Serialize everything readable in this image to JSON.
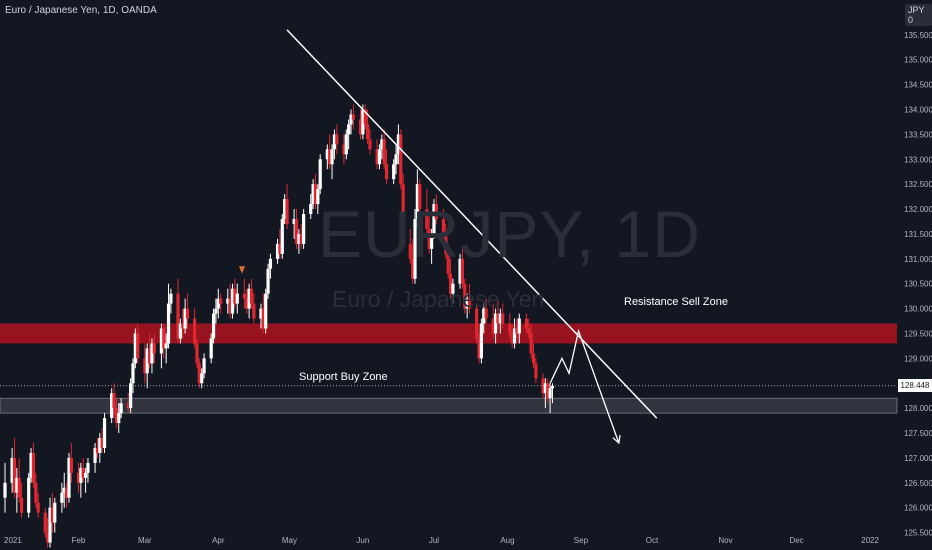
{
  "header": {
    "title": "Euro / Japanese Yen, 1D, OANDA",
    "currency_badge": "JPY 0"
  },
  "watermark": {
    "symbol": "EURJPY, 1D",
    "name": "Euro / Japanese Yen"
  },
  "annotations": {
    "resistance_label": "Resistance Sell Zone",
    "support_label": "Support Buy Zone"
  },
  "colors": {
    "background": "#131722",
    "up": "#ffffff",
    "down": "#e0272f",
    "resistance_zone": "#a3141f",
    "support_zone": "#3b3f4a",
    "trendline": "#ffffff"
  },
  "chart_data": {
    "type": "candlestick",
    "ylim": [
      125.15,
      136.2
    ],
    "yticks": [
      "125.500",
      "126.000",
      "126.500",
      "127.000",
      "127.500",
      "128.000",
      "128.500",
      "129.000",
      "129.500",
      "130.000",
      "130.500",
      "131.000",
      "131.500",
      "132.000",
      "132.500",
      "133.000",
      "133.500",
      "134.000",
      "134.500",
      "135.000",
      "135.500"
    ],
    "xticks": [
      "2021",
      "Feb",
      "Mar",
      "Apr",
      "May",
      "Jun",
      "Jul",
      "Aug",
      "Sep",
      "Oct",
      "Nov",
      "Dec",
      "2022"
    ],
    "current_price": "128.448",
    "resistance_zone": [
      129.3,
      129.7
    ],
    "support_zone": [
      127.9,
      128.2
    ],
    "trendline": [
      {
        "x": "2021-04-30",
        "y": 135.6
      },
      {
        "x": "2021-10-03",
        "y": 127.8
      }
    ],
    "projection": [
      {
        "x": "2021-08-19",
        "y": 128.5
      },
      {
        "x": "2021-08-24",
        "y": 129.0
      },
      {
        "x": "2021-08-27",
        "y": 128.7
      },
      {
        "x": "2021-08-31",
        "y": 129.55
      },
      {
        "x": "2021-09-17",
        "y": 127.3
      }
    ],
    "candles": [
      [
        "2021-01-01",
        126.2,
        126.9,
        125.9,
        126.5
      ],
      [
        "2021-01-04",
        126.5,
        127.2,
        126.3,
        127.0
      ],
      [
        "2021-01-05",
        127.0,
        127.4,
        126.2,
        126.3
      ],
      [
        "2021-01-06",
        126.3,
        126.8,
        125.9,
        126.6
      ],
      [
        "2021-01-07",
        126.6,
        127.0,
        126.1,
        126.2
      ],
      [
        "2021-01-08",
        126.2,
        126.5,
        125.8,
        125.9
      ],
      [
        "2021-01-11",
        125.9,
        126.7,
        125.8,
        126.6
      ],
      [
        "2021-01-12",
        126.6,
        127.2,
        126.5,
        127.1
      ],
      [
        "2021-01-13",
        127.1,
        127.3,
        126.4,
        126.5
      ],
      [
        "2021-01-14",
        126.5,
        126.7,
        126.0,
        126.1
      ],
      [
        "2021-01-15",
        126.1,
        126.3,
        125.8,
        125.9
      ],
      [
        "2021-01-18",
        125.9,
        126.0,
        125.4,
        125.5
      ],
      [
        "2021-01-19",
        125.5,
        125.8,
        125.2,
        125.3
      ],
      [
        "2021-01-20",
        125.3,
        126.2,
        125.2,
        126.0
      ],
      [
        "2021-01-21",
        126.0,
        126.3,
        125.5,
        125.7
      ],
      [
        "2021-01-22",
        125.7,
        126.2,
        125.5,
        126.1
      ],
      [
        "2021-01-25",
        126.1,
        126.5,
        125.9,
        126.3
      ],
      [
        "2021-01-26",
        126.3,
        126.7,
        126.0,
        126.4
      ],
      [
        "2021-01-27",
        126.4,
        126.5,
        126.0,
        126.2
      ],
      [
        "2021-01-28",
        126.2,
        127.1,
        126.1,
        127.0
      ],
      [
        "2021-01-29",
        127.0,
        127.3,
        126.5,
        126.7
      ],
      [
        "2021-02-01",
        126.7,
        126.9,
        126.3,
        126.5
      ],
      [
        "2021-02-02",
        126.5,
        126.9,
        126.2,
        126.8
      ],
      [
        "2021-02-03",
        126.8,
        127.0,
        126.5,
        126.6
      ],
      [
        "2021-02-04",
        126.6,
        126.8,
        126.3,
        126.7
      ],
      [
        "2021-02-05",
        126.7,
        127.0,
        126.5,
        126.9
      ],
      [
        "2021-02-08",
        126.9,
        127.3,
        126.7,
        127.2
      ],
      [
        "2021-02-09",
        127.2,
        127.4,
        127.0,
        127.1
      ],
      [
        "2021-02-10",
        127.1,
        127.5,
        126.9,
        127.4
      ],
      [
        "2021-02-11",
        127.4,
        127.6,
        127.1,
        127.2
      ],
      [
        "2021-02-12",
        127.2,
        127.9,
        127.1,
        127.8
      ],
      [
        "2021-02-15",
        127.8,
        128.4,
        127.7,
        128.3
      ],
      [
        "2021-02-16",
        128.3,
        128.5,
        127.8,
        128.0
      ],
      [
        "2021-02-17",
        128.0,
        128.2,
        127.6,
        127.7
      ],
      [
        "2021-02-18",
        127.7,
        128.1,
        127.5,
        127.9
      ],
      [
        "2021-02-19",
        127.9,
        128.2,
        127.8,
        128.1
      ],
      [
        "2021-02-22",
        128.1,
        128.3,
        127.9,
        128.0
      ],
      [
        "2021-02-23",
        128.0,
        128.6,
        127.9,
        128.5
      ],
      [
        "2021-02-24",
        128.5,
        129.0,
        128.3,
        128.9
      ],
      [
        "2021-02-25",
        128.9,
        129.6,
        128.8,
        129.5
      ],
      [
        "2021-02-26",
        129.5,
        129.7,
        128.9,
        129.0
      ],
      [
        "2021-03-01",
        129.0,
        129.3,
        128.5,
        128.7
      ],
      [
        "2021-03-02",
        128.7,
        129.3,
        128.4,
        129.2
      ],
      [
        "2021-03-03",
        129.2,
        129.5,
        128.8,
        128.9
      ],
      [
        "2021-03-04",
        128.9,
        129.4,
        128.7,
        129.3
      ],
      [
        "2021-03-05",
        129.3,
        129.5,
        128.9,
        129.1
      ],
      [
        "2021-03-08",
        129.1,
        129.7,
        128.8,
        129.6
      ],
      [
        "2021-03-09",
        129.6,
        129.7,
        129.0,
        129.2
      ],
      [
        "2021-03-10",
        129.2,
        129.5,
        128.9,
        129.3
      ],
      [
        "2021-03-11",
        129.3,
        130.5,
        129.2,
        130.1
      ],
      [
        "2021-03-12",
        130.1,
        130.4,
        129.9,
        130.3
      ],
      [
        "2021-03-15",
        130.3,
        130.6,
        129.3,
        129.4
      ],
      [
        "2021-03-16",
        129.4,
        129.8,
        129.3,
        129.7
      ],
      [
        "2021-03-17",
        129.7,
        130.0,
        129.4,
        129.6
      ],
      [
        "2021-03-18",
        129.6,
        130.2,
        129.5,
        130.0
      ],
      [
        "2021-03-19",
        130.0,
        130.3,
        129.6,
        129.8
      ],
      [
        "2021-03-22",
        129.8,
        130.0,
        129.2,
        129.3
      ],
      [
        "2021-03-23",
        129.3,
        129.4,
        128.8,
        128.9
      ],
      [
        "2021-03-24",
        128.9,
        129.0,
        128.4,
        128.5
      ],
      [
        "2021-03-25",
        128.5,
        128.8,
        128.4,
        128.7
      ],
      [
        "2021-03-26",
        128.7,
        129.1,
        128.6,
        129.0
      ],
      [
        "2021-03-29",
        129.0,
        129.5,
        128.9,
        129.4
      ],
      [
        "2021-03-30",
        129.4,
        130.0,
        129.3,
        129.9
      ],
      [
        "2021-03-31",
        129.9,
        130.2,
        129.7,
        130.0
      ],
      [
        "2021-04-01",
        130.0,
        130.4,
        129.8,
        130.2
      ],
      [
        "2021-04-02",
        130.2,
        130.3,
        129.9,
        130.1
      ],
      [
        "2021-04-05",
        130.1,
        130.4,
        129.9,
        130.2
      ],
      [
        "2021-04-06",
        130.2,
        130.5,
        129.8,
        129.9
      ],
      [
        "2021-04-07",
        129.9,
        130.5,
        129.8,
        130.4
      ],
      [
        "2021-04-08",
        130.4,
        130.6,
        130.0,
        130.1
      ],
      [
        "2021-04-09",
        130.1,
        130.5,
        129.9,
        130.3
      ],
      [
        "2021-04-12",
        130.3,
        130.6,
        130.0,
        130.2
      ],
      [
        "2021-04-13",
        130.2,
        130.4,
        129.9,
        130.0
      ],
      [
        "2021-04-14",
        130.0,
        130.5,
        129.8,
        130.4
      ],
      [
        "2021-04-15",
        130.4,
        130.6,
        130.0,
        130.1
      ],
      [
        "2021-04-16",
        130.1,
        130.3,
        129.7,
        129.8
      ],
      [
        "2021-04-19",
        129.8,
        130.1,
        129.6,
        130.0
      ],
      [
        "2021-04-20",
        130.0,
        130.3,
        129.5,
        129.6
      ],
      [
        "2021-04-21",
        129.6,
        130.4,
        129.5,
        130.3
      ],
      [
        "2021-04-22",
        130.3,
        130.9,
        130.2,
        130.8
      ],
      [
        "2021-04-23",
        130.8,
        131.1,
        130.6,
        131.0
      ],
      [
        "2021-04-26",
        131.0,
        131.4,
        130.9,
        131.3
      ],
      [
        "2021-04-27",
        131.3,
        131.6,
        131.0,
        131.1
      ],
      [
        "2021-04-28",
        131.1,
        131.9,
        131.0,
        131.8
      ],
      [
        "2021-04-29",
        131.8,
        132.3,
        131.7,
        132.2
      ],
      [
        "2021-04-30",
        132.2,
        132.5,
        131.6,
        131.7
      ],
      [
        "2021-05-03",
        131.7,
        132.0,
        131.4,
        131.8
      ],
      [
        "2021-05-04",
        131.8,
        132.0,
        131.2,
        131.3
      ],
      [
        "2021-05-05",
        131.3,
        131.6,
        131.1,
        131.5
      ],
      [
        "2021-05-06",
        131.5,
        131.7,
        131.2,
        131.3
      ],
      [
        "2021-05-07",
        131.3,
        132.0,
        131.2,
        131.9
      ],
      [
        "2021-05-10",
        131.9,
        132.3,
        131.8,
        132.1
      ],
      [
        "2021-05-11",
        132.1,
        132.6,
        132.0,
        132.5
      ],
      [
        "2021-05-12",
        132.5,
        132.7,
        132.0,
        132.1
      ],
      [
        "2021-05-13",
        132.1,
        132.5,
        131.9,
        132.4
      ],
      [
        "2021-05-14",
        132.4,
        133.1,
        132.3,
        133.0
      ],
      [
        "2021-05-17",
        133.0,
        133.3,
        132.8,
        133.2
      ],
      [
        "2021-05-18",
        133.2,
        133.5,
        132.8,
        132.9
      ],
      [
        "2021-05-19",
        132.9,
        133.3,
        132.6,
        133.2
      ],
      [
        "2021-05-20",
        133.2,
        133.6,
        133.0,
        133.5
      ],
      [
        "2021-05-21",
        133.5,
        133.7,
        133.1,
        133.3
      ],
      [
        "2021-05-24",
        133.3,
        133.5,
        132.9,
        133.1
      ],
      [
        "2021-05-25",
        133.1,
        133.6,
        133.0,
        133.5
      ],
      [
        "2021-05-26",
        133.5,
        133.8,
        133.2,
        133.7
      ],
      [
        "2021-05-27",
        133.7,
        134.0,
        133.5,
        133.9
      ],
      [
        "2021-05-28",
        133.9,
        134.1,
        133.6,
        133.8
      ],
      [
        "2021-05-31",
        133.8,
        134.0,
        133.4,
        133.5
      ],
      [
        "2021-06-01",
        133.5,
        134.1,
        133.4,
        134.0
      ],
      [
        "2021-06-02",
        134.0,
        134.1,
        133.6,
        133.7
      ],
      [
        "2021-06-03",
        133.7,
        134.0,
        133.3,
        133.4
      ],
      [
        "2021-06-04",
        133.4,
        133.6,
        133.1,
        133.2
      ],
      [
        "2021-06-07",
        133.2,
        133.4,
        132.8,
        132.9
      ],
      [
        "2021-06-08",
        132.9,
        133.3,
        132.8,
        133.2
      ],
      [
        "2021-06-09",
        133.2,
        133.5,
        133.0,
        133.4
      ],
      [
        "2021-06-10",
        133.4,
        133.6,
        132.8,
        132.9
      ],
      [
        "2021-06-11",
        132.9,
        133.2,
        132.5,
        132.6
      ],
      [
        "2021-06-14",
        132.6,
        133.0,
        132.5,
        132.9
      ],
      [
        "2021-06-15",
        132.9,
        133.3,
        132.7,
        133.1
      ],
      [
        "2021-06-16",
        133.1,
        133.7,
        132.9,
        133.5
      ],
      [
        "2021-06-17",
        133.5,
        133.6,
        132.4,
        132.5
      ],
      [
        "2021-06-18",
        132.5,
        132.7,
        131.2,
        131.3
      ],
      [
        "2021-06-21",
        131.3,
        131.6,
        130.9,
        131.0
      ],
      [
        "2021-06-22",
        131.0,
        131.4,
        130.5,
        130.6
      ],
      [
        "2021-06-23",
        130.6,
        132.0,
        130.5,
        131.8
      ],
      [
        "2021-06-24",
        131.8,
        132.8,
        131.6,
        132.5
      ],
      [
        "2021-06-25",
        132.5,
        132.6,
        131.9,
        132.0
      ],
      [
        "2021-06-28",
        132.0,
        132.4,
        131.5,
        131.6
      ],
      [
        "2021-06-29",
        131.6,
        131.9,
        131.1,
        131.2
      ],
      [
        "2021-06-30",
        131.2,
        131.6,
        130.9,
        131.5
      ],
      [
        "2021-07-01",
        131.5,
        132.2,
        131.4,
        132.1
      ],
      [
        "2021-07-02",
        132.1,
        132.3,
        131.7,
        131.8
      ],
      [
        "2021-07-05",
        131.8,
        132.0,
        131.4,
        131.5
      ],
      [
        "2021-07-06",
        131.5,
        131.7,
        131.0,
        131.1
      ],
      [
        "2021-07-07",
        131.1,
        131.3,
        130.6,
        130.7
      ],
      [
        "2021-07-08",
        130.7,
        131.0,
        130.2,
        130.3
      ],
      [
        "2021-07-09",
        130.3,
        130.6,
        130.1,
        130.5
      ],
      [
        "2021-07-12",
        130.5,
        131.1,
        130.4,
        131.0
      ],
      [
        "2021-07-13",
        131.0,
        131.2,
        130.4,
        130.5
      ],
      [
        "2021-07-14",
        130.5,
        130.6,
        129.9,
        130.0
      ],
      [
        "2021-07-15",
        130.0,
        130.3,
        129.8,
        130.2
      ],
      [
        "2021-07-16",
        130.2,
        130.5,
        129.9,
        130.0
      ],
      [
        "2021-07-19",
        130.0,
        130.1,
        129.3,
        129.4
      ],
      [
        "2021-07-20",
        129.4,
        129.5,
        128.9,
        129.0
      ],
      [
        "2021-07-21",
        129.0,
        129.8,
        128.9,
        129.7
      ],
      [
        "2021-07-22",
        129.7,
        130.1,
        129.5,
        130.0
      ],
      [
        "2021-07-23",
        130.0,
        130.2,
        129.7,
        129.8
      ],
      [
        "2021-07-26",
        129.8,
        130.1,
        129.4,
        129.5
      ],
      [
        "2021-07-27",
        129.5,
        130.0,
        129.3,
        129.9
      ],
      [
        "2021-07-28",
        129.9,
        130.2,
        129.6,
        129.7
      ],
      [
        "2021-07-29",
        129.7,
        130.0,
        129.5,
        129.9
      ],
      [
        "2021-07-30",
        129.9,
        130.1,
        129.6,
        129.7
      ],
      [
        "2021-08-02",
        129.7,
        129.9,
        129.4,
        129.5
      ],
      [
        "2021-08-03",
        129.5,
        129.7,
        129.2,
        129.3
      ],
      [
        "2021-08-04",
        129.3,
        129.8,
        129.2,
        129.6
      ],
      [
        "2021-08-05",
        129.6,
        129.8,
        129.4,
        129.5
      ],
      [
        "2021-08-06",
        129.5,
        129.9,
        129.3,
        129.8
      ],
      [
        "2021-08-09",
        129.8,
        129.9,
        129.5,
        129.6
      ],
      [
        "2021-08-10",
        129.6,
        129.8,
        129.4,
        129.5
      ],
      [
        "2021-08-11",
        129.5,
        129.7,
        129.0,
        129.1
      ],
      [
        "2021-08-12",
        129.1,
        129.3,
        128.8,
        128.9
      ],
      [
        "2021-08-13",
        128.9,
        129.0,
        128.5,
        128.6
      ],
      [
        "2021-08-16",
        128.6,
        128.7,
        128.2,
        128.3
      ],
      [
        "2021-08-17",
        128.3,
        128.6,
        128.0,
        128.5
      ],
      [
        "2021-08-18",
        128.5,
        128.6,
        128.1,
        128.2
      ],
      [
        "2021-08-19",
        128.2,
        128.5,
        127.9,
        128.4
      ],
      [
        "2021-08-20",
        128.4,
        128.5,
        128.1,
        128.448
      ]
    ]
  }
}
